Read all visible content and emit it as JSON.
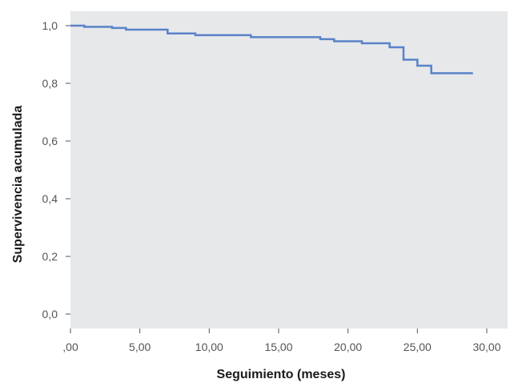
{
  "chart_data": {
    "type": "line",
    "step": true,
    "title": "",
    "xlabel": "Seguimiento (meses)",
    "ylabel": "Supervivencia acumulada",
    "xlim": [
      0,
      31.5
    ],
    "ylim": [
      -0.05,
      1.05
    ],
    "x_ticks": [
      0,
      5,
      10,
      15,
      20,
      25,
      30
    ],
    "x_tick_labels": [
      ",00",
      "5,00",
      "10,00",
      "15,00",
      "20,00",
      "25,00",
      "30,00"
    ],
    "y_ticks": [
      0,
      0.2,
      0.4,
      0.6,
      0.8,
      1.0
    ],
    "y_tick_labels": [
      "0,0",
      "0,2",
      "0,4",
      "0,6",
      "0,8",
      "1,0"
    ],
    "grid": false,
    "plot_background": "#e6e8ea",
    "series": [
      {
        "color": "#5a82c8",
        "x": [
          0,
          1,
          3,
          4,
          7,
          9,
          13,
          18,
          19,
          21,
          23,
          24,
          25,
          26,
          29
        ],
        "y": [
          1.0,
          0.996,
          0.992,
          0.986,
          0.973,
          0.967,
          0.96,
          0.953,
          0.946,
          0.939,
          0.925,
          0.882,
          0.861,
          0.835,
          0.835
        ]
      }
    ]
  }
}
